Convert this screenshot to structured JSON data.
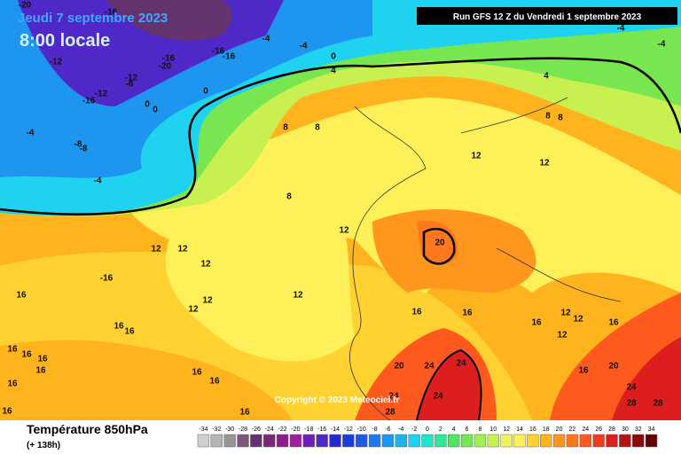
{
  "header": {
    "date": "Jeudi 7 septembre 2023",
    "time": "8:00 locale",
    "run": "Run GFS 12 Z du Vendredi 1 septembre 2023"
  },
  "copyright": "Copyright © 2023 Meteociel.fr",
  "footer": {
    "title": "Température 850hPa",
    "subtitle": "(+ 138h)"
  },
  "colorbar": {
    "labels": [
      -34,
      -32,
      -30,
      -28,
      -26,
      -24,
      -22,
      -20,
      -18,
      -16,
      -14,
      -12,
      -10,
      -8,
      -6,
      -4,
      -2,
      0,
      2,
      4,
      6,
      8,
      10,
      12,
      14,
      16,
      18,
      20,
      22,
      24,
      26,
      28,
      30,
      32,
      34
    ],
    "colors": [
      "#d0d0d0",
      "#b4b4b4",
      "#969696",
      "#7a5a7a",
      "#64326e",
      "#782878",
      "#8c1e8c",
      "#a01ea0",
      "#6e1eb4",
      "#5028c8",
      "#2828d2",
      "#1e3cdc",
      "#1e5ae6",
      "#1e78f0",
      "#1e96f0",
      "#1eb4f0",
      "#1ed2f0",
      "#1ee6c8",
      "#32e696",
      "#50e664",
      "#78e650",
      "#a0f050",
      "#c8f050",
      "#f0f064",
      "#fff05a",
      "#ffd232",
      "#ffb41e",
      "#ff961e",
      "#ff781e",
      "#ff5a1e",
      "#f03c1e",
      "#dc1e1e",
      "#b41414",
      "#8c0a0a",
      "#640000"
    ]
  },
  "contour_labels": [
    "-20",
    "-16",
    "-12",
    "-16",
    "-20",
    "-16",
    "-16",
    "-4",
    "-4",
    "-4",
    "-4",
    "0",
    "4",
    "0",
    "-12",
    "-8",
    "-12",
    "-16",
    "0",
    "0",
    "-4",
    "-8",
    "-8",
    "-4",
    "4",
    "8",
    "8",
    "8",
    "8",
    "12",
    "12",
    "8",
    "12",
    "20",
    "12",
    "12",
    "12",
    "-16",
    "16",
    "12",
    "12",
    "12",
    "16",
    "16",
    "16",
    "12",
    "12",
    "16",
    "12",
    "16",
    "16",
    "16",
    "16",
    "16",
    "16",
    "16",
    "16",
    "16",
    "16",
    "16",
    "20",
    "24",
    "20",
    "16",
    "24",
    "24",
    "24",
    "28",
    "28",
    "28",
    "24"
  ]
}
